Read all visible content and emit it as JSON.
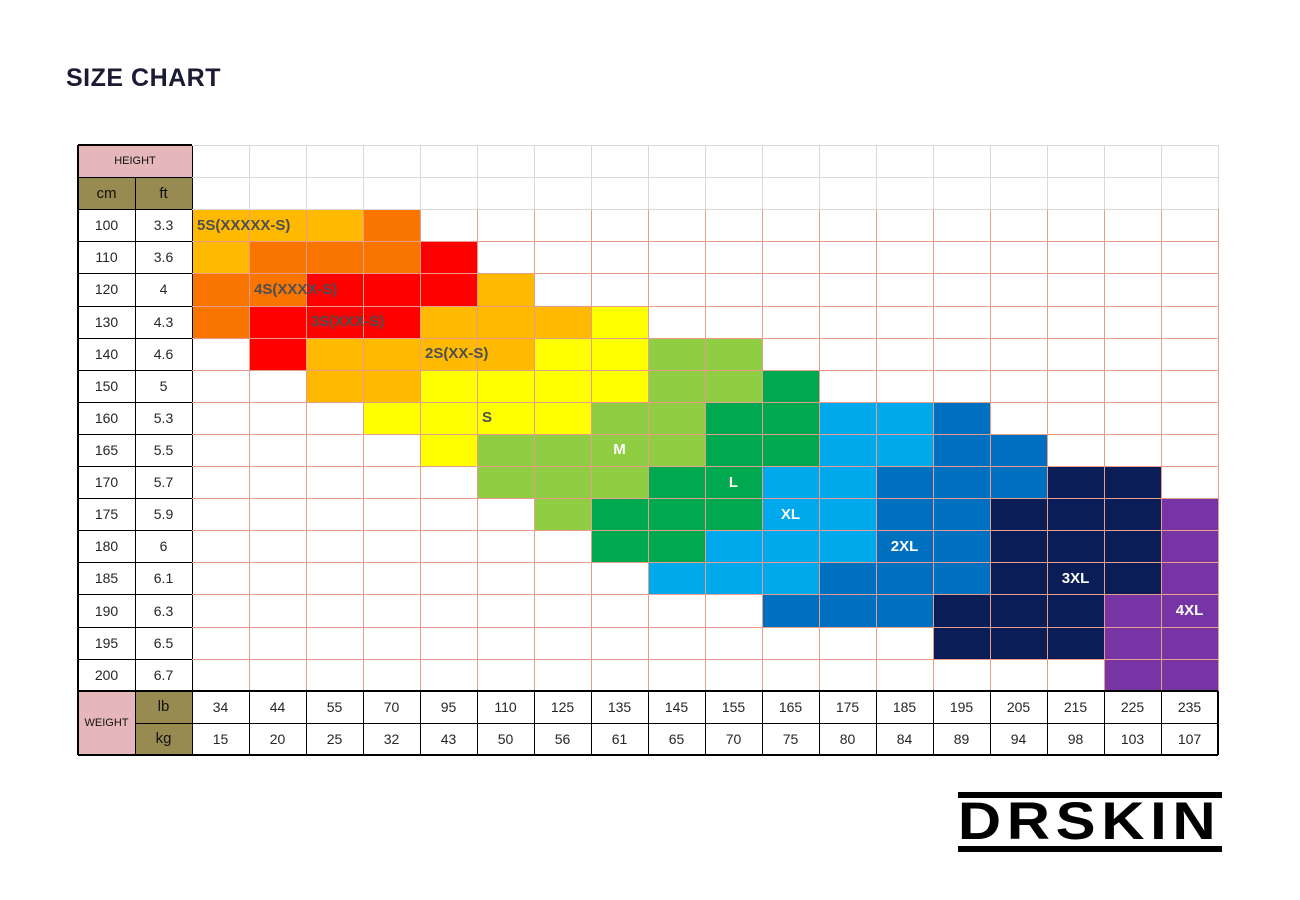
{
  "title": "SIZE CHART",
  "logo_text": "DRSKIN",
  "table": {
    "height_header": "HEIGHT",
    "height_units": [
      "cm",
      "ft"
    ],
    "weight_header": "WEIGHT",
    "weight_units": [
      "lb",
      "kg"
    ]
  },
  "theme": {
    "header_pink": "#e5b7bb",
    "header_olive": "#988b52",
    "grid_salmon": "#e89c8c",
    "grid_gray": "#d9d9d9",
    "border_black": "#000000",
    "label_dark": "#4d4f53",
    "label_white": "#ffffff",
    "title_color": "#1b1b33"
  },
  "chart_data": {
    "type": "heatmap",
    "title": "SIZE CHART",
    "x_axis": {
      "label": "WEIGHT",
      "units": [
        "lb",
        "kg"
      ],
      "lb": [
        "34",
        "44",
        "55",
        "70",
        "95",
        "110",
        "125",
        "135",
        "145",
        "155",
        "165",
        "175",
        "185",
        "195",
        "205",
        "215",
        "225",
        "235"
      ],
      "kg": [
        "15",
        "20",
        "25",
        "32",
        "43",
        "50",
        "56",
        "61",
        "65",
        "70",
        "75",
        "80",
        "84",
        "89",
        "94",
        "98",
        "103",
        "107"
      ]
    },
    "y_axis": {
      "label": "HEIGHT",
      "units": [
        "cm",
        "ft"
      ],
      "cm": [
        "100",
        "110",
        "120",
        "130",
        "140",
        "150",
        "160",
        "165",
        "170",
        "175",
        "180",
        "185",
        "190",
        "195",
        "200"
      ],
      "ft": [
        "3.3",
        "3.6",
        "4",
        "4.3",
        "4.6",
        "5",
        "5.3",
        "5.5",
        "5.7",
        "5.9",
        "6",
        "6.1",
        "6.3",
        "6.5",
        "6.7"
      ]
    },
    "legend": {
      "A": "#ffb900",
      "O": "#fa7500",
      "R": "#fe0000",
      "Y": "#ffff00",
      "G": "#8fce43",
      "E": "#00a950",
      "C": "#00a9ec",
      "B": "#0071c1",
      "N": "#0b1d56",
      "P": "#7634a4"
    },
    "cell_rows": [
      "AAAO..............",
      "AOOOR.............",
      "OORRRA............",
      "ORRRAAAY..........",
      ".RAAAAYYGG........",
      "..AAYYYYGGE.......",
      "...YYYYGGEECCB....",
      "....YGGGGEECCBB...",
      ".....GGGEECCBBBNN.",
      "......GEEECCBBNNNP",
      ".......EECCCBBNNNP",
      "........CCCBBBNNNP",
      "..........BBBNNNPP",
      ".............NNNPP",
      "................PP"
    ],
    "size_labels": [
      {
        "text": "5S(XXXXX-S)",
        "row": 0,
        "col": 1,
        "style": "dark"
      },
      {
        "text": "4S(XXXX-S)",
        "row": 2,
        "col": 2,
        "style": "dark"
      },
      {
        "text": "3S(XXX-S)",
        "row": 3,
        "col": 3,
        "style": "dark"
      },
      {
        "text": "2S(XX-S)",
        "row": 4,
        "col": 5,
        "style": "dark"
      },
      {
        "text": "S",
        "row": 6,
        "col": 6,
        "style": "dark"
      },
      {
        "text": "M",
        "row": 7,
        "col": 8,
        "style": "white"
      },
      {
        "text": "L",
        "row": 8,
        "col": 10,
        "style": "white"
      },
      {
        "text": "XL",
        "row": 9,
        "col": 11,
        "style": "white"
      },
      {
        "text": "2XL",
        "row": 10,
        "col": 13,
        "style": "white"
      },
      {
        "text": "3XL",
        "row": 11,
        "col": 16,
        "style": "white"
      },
      {
        "text": "4XL",
        "row": 12,
        "col": 18,
        "style": "white"
      }
    ]
  }
}
